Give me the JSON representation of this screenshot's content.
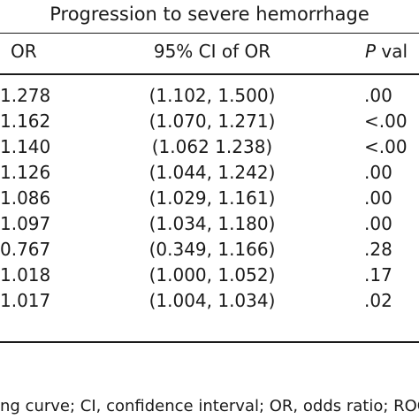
{
  "table": {
    "spanning_header": "Progression to severe hemorrhage",
    "columns": {
      "or": "OR",
      "ci": "95% CI of OR",
      "p_italic": "P",
      "p_rest": " val"
    },
    "rows": [
      {
        "or": "1.278",
        "ci": "(1.102, 1.500)",
        "p": ".00"
      },
      {
        "or": "1.162",
        "ci": "(1.070, 1.271)",
        "p": "<.00"
      },
      {
        "or": "1.140",
        "ci": "(1.062 1.238)",
        "p": "<.00"
      },
      {
        "or": "1.126",
        "ci": "(1.044, 1.242)",
        "p": ".00"
      },
      {
        "or": "1.086",
        "ci": "(1.029, 1.161)",
        "p": ".00"
      },
      {
        "or": "1.097",
        "ci": "(1.034, 1.180)",
        "p": ".00"
      },
      {
        "or": "0.767",
        "ci": "(0.349, 1.166)",
        "p": ".28"
      },
      {
        "or": "1.018",
        "ci": "(1.000, 1.052)",
        "p": ".17"
      },
      {
        "or": "1.017",
        "ci": "(1.004, 1.034)",
        "p": ".02"
      }
    ]
  },
  "footnote": "ng curve; CI, confidence interval; OR, odds ratio; ROC"
}
